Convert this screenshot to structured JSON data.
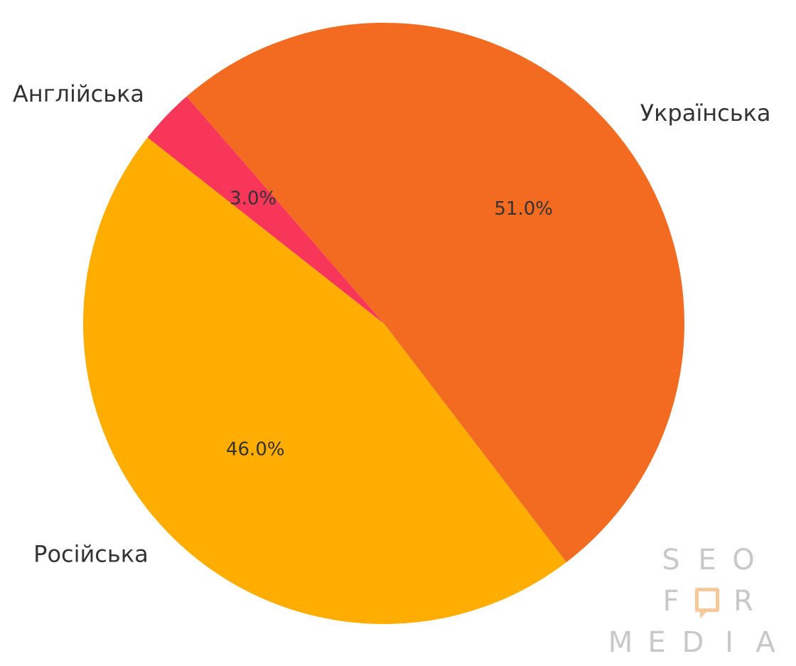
{
  "chart_data": {
    "type": "pie",
    "slices": [
      {
        "label": "Українська",
        "value": 51.0,
        "pct_label": "51.0%",
        "color": "#f26b21"
      },
      {
        "label": "Російська",
        "value": 46.0,
        "pct_label": "46.0%",
        "color": "#ffad00"
      },
      {
        "label": "Англійська",
        "value": 3.0,
        "pct_label": "3.0%",
        "color": "#f7365a"
      }
    ],
    "title": "",
    "start_angle_deg": 131,
    "direction": "clockwise"
  },
  "watermark": {
    "line1": [
      "S",
      "E",
      "O"
    ],
    "line2_left": "F",
    "line2_right": "R",
    "line3": [
      "M",
      "E",
      "D",
      "I",
      "A"
    ],
    "color": "#c8c8c8",
    "accent_color": "#f7c99a"
  }
}
